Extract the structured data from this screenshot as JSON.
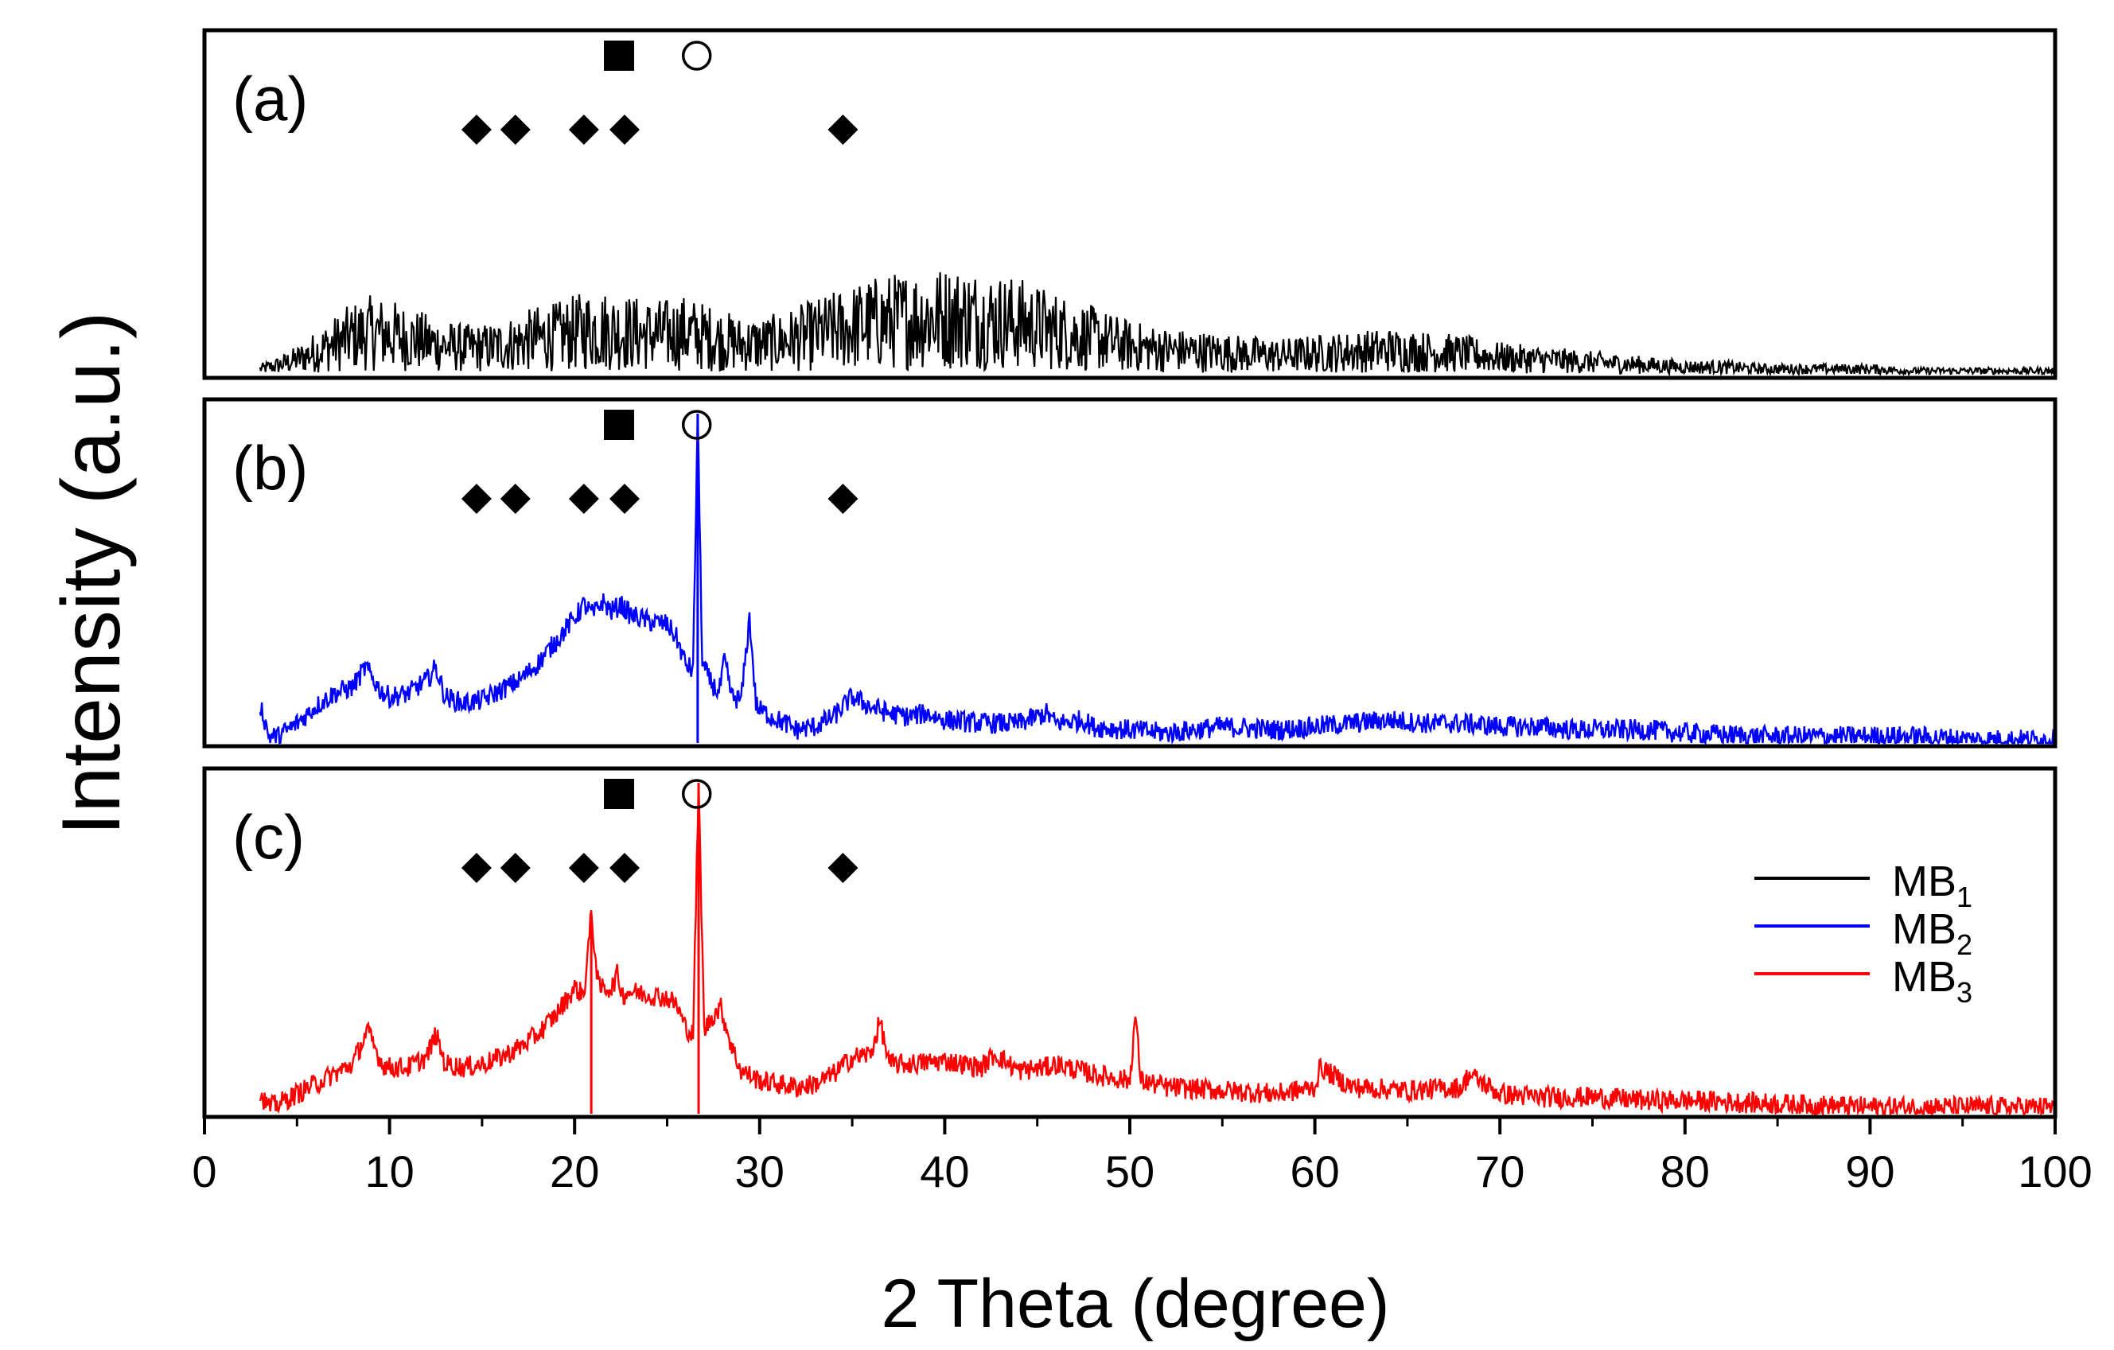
{
  "chart_data": {
    "type": "line",
    "title": "",
    "xlabel": "2 Theta (degree)",
    "ylabel": "Intensity (a.u.)",
    "xlim": [
      0,
      100
    ],
    "xticks": [
      0,
      10,
      20,
      30,
      40,
      50,
      60,
      70,
      80,
      90,
      100
    ],
    "grid": false,
    "legend": {
      "position": "right, panel (c)",
      "entries": [
        {
          "base": "MB",
          "sub": "1",
          "color": "#000000"
        },
        {
          "base": "MB",
          "sub": "2",
          "color": "#0000ff"
        },
        {
          "base": "MB",
          "sub": "3",
          "color": "#ff0000"
        }
      ]
    },
    "markers": {
      "square_x": [
        22.4
      ],
      "circle_x": [
        26.6
      ],
      "diamond_x": [
        14.7,
        16.8,
        20.5,
        22.7,
        34.5
      ]
    },
    "panels": [
      {
        "label": "(a)",
        "series_name": "MB1",
        "color": "#000000",
        "ylim": [
          0,
          100
        ],
        "x": [
          3,
          4,
          5,
          6,
          7,
          8,
          9,
          10,
          11,
          12,
          13,
          14,
          15,
          16,
          17,
          18,
          19,
          20,
          21,
          22,
          23,
          24,
          25,
          26,
          27,
          28,
          29,
          30,
          31,
          32,
          33,
          34,
          35,
          36,
          37,
          38,
          39,
          40,
          41,
          42,
          43,
          44,
          45,
          46,
          47,
          48,
          49,
          50,
          52,
          54,
          56,
          58,
          60,
          62,
          64,
          66,
          68,
          70,
          72,
          74,
          76,
          78,
          80,
          82,
          84,
          86,
          88,
          90,
          92,
          94,
          96,
          98,
          100
        ],
        "y": [
          3,
          5,
          8,
          12,
          16,
          20,
          22,
          21,
          19,
          17,
          15,
          14,
          14,
          15,
          17,
          19,
          20,
          22,
          24,
          23,
          22,
          21,
          21,
          22,
          20,
          18,
          16,
          16,
          17,
          19,
          21,
          23,
          25,
          27,
          28,
          29,
          30,
          30,
          30,
          29,
          28,
          27,
          25,
          23,
          21,
          19,
          17,
          15,
          13,
          12,
          11,
          10,
          11,
          12,
          13,
          12,
          11,
          9,
          8,
          7,
          6,
          5,
          4,
          4,
          3,
          3,
          3,
          3,
          2,
          2,
          2,
          2,
          2
        ]
      },
      {
        "label": "(b)",
        "series_name": "MB2",
        "color": "#0000ff",
        "ylim": [
          0,
          100
        ],
        "x": [
          3,
          3.5,
          4,
          5,
          6,
          7,
          8,
          8.7,
          9.5,
          10,
          11,
          12,
          12.5,
          13,
          14,
          15,
          16,
          17,
          18,
          19,
          20,
          20.5,
          21,
          21.5,
          22,
          22.5,
          23,
          23.5,
          24,
          25,
          25.5,
          26,
          26.4,
          26.65,
          26.9,
          27.3,
          27.8,
          28.1,
          28.5,
          29,
          29.45,
          29.8,
          30,
          31,
          32,
          33,
          34,
          35,
          36,
          37,
          38,
          39,
          40,
          42,
          44,
          45.5,
          46,
          47.5,
          48,
          50,
          52,
          55,
          58,
          60,
          62,
          64,
          66,
          68,
          70,
          72,
          74,
          76,
          78,
          80,
          84,
          88,
          92,
          96,
          100
        ],
        "y": [
          12,
          2,
          2,
          6,
          11,
          15,
          17,
          23,
          16,
          14,
          15,
          19,
          23,
          14,
          12,
          13,
          16,
          19,
          24,
          31,
          38,
          42,
          39,
          43,
          40,
          42,
          39,
          38,
          37,
          36,
          32,
          24,
          22,
          100,
          24,
          19,
          15,
          25,
          14,
          13,
          38,
          12,
          10,
          7,
          4,
          5,
          8,
          14,
          11,
          9,
          8,
          9,
          7,
          6,
          6,
          9,
          6,
          7,
          5,
          4,
          3,
          5,
          4,
          5,
          6,
          7,
          6,
          6,
          5,
          5,
          4,
          4,
          4,
          3,
          2,
          2,
          2,
          1,
          1
        ]
      },
      {
        "label": "(c)",
        "series_name": "MB3",
        "color": "#ff0000",
        "ylim": [
          0,
          100
        ],
        "x": [
          3,
          3.5,
          4,
          5,
          6,
          7,
          8,
          8.8,
          9.6,
          10,
          11,
          12,
          12.5,
          13,
          14,
          15,
          16,
          17,
          18,
          19,
          20,
          20.5,
          20.9,
          21.3,
          22,
          22.3,
          22.6,
          23,
          24,
          25,
          25.5,
          26,
          26.4,
          26.7,
          27,
          27.5,
          27.9,
          28.5,
          29,
          30,
          31,
          32,
          33,
          34,
          35,
          36,
          36.5,
          37,
          38,
          40,
          42,
          42.7,
          44,
          45.5,
          46,
          48,
          50,
          50.3,
          50.6,
          52,
          55,
          58,
          60,
          60.3,
          62,
          65,
          68,
          68.3,
          70,
          72,
          75,
          78,
          80,
          85,
          90,
          95,
          100
        ],
        "y": [
          6,
          2,
          3,
          6,
          9,
          12,
          15,
          25,
          15,
          14,
          14,
          17,
          24,
          15,
          14,
          15,
          17,
          20,
          24,
          30,
          38,
          36,
          60,
          38,
          38,
          42,
          36,
          37,
          36,
          35,
          33,
          26,
          24,
          100,
          25,
          30,
          32,
          20,
          13,
          10,
          9,
          8,
          9,
          12,
          17,
          18,
          28,
          15,
          15,
          16,
          14,
          18,
          13,
          14,
          15,
          12,
          10,
          30,
          10,
          8,
          7,
          6,
          8,
          14,
          8,
          7,
          8,
          12,
          6,
          5,
          5,
          4,
          4,
          3,
          2,
          2,
          2
        ]
      }
    ]
  }
}
